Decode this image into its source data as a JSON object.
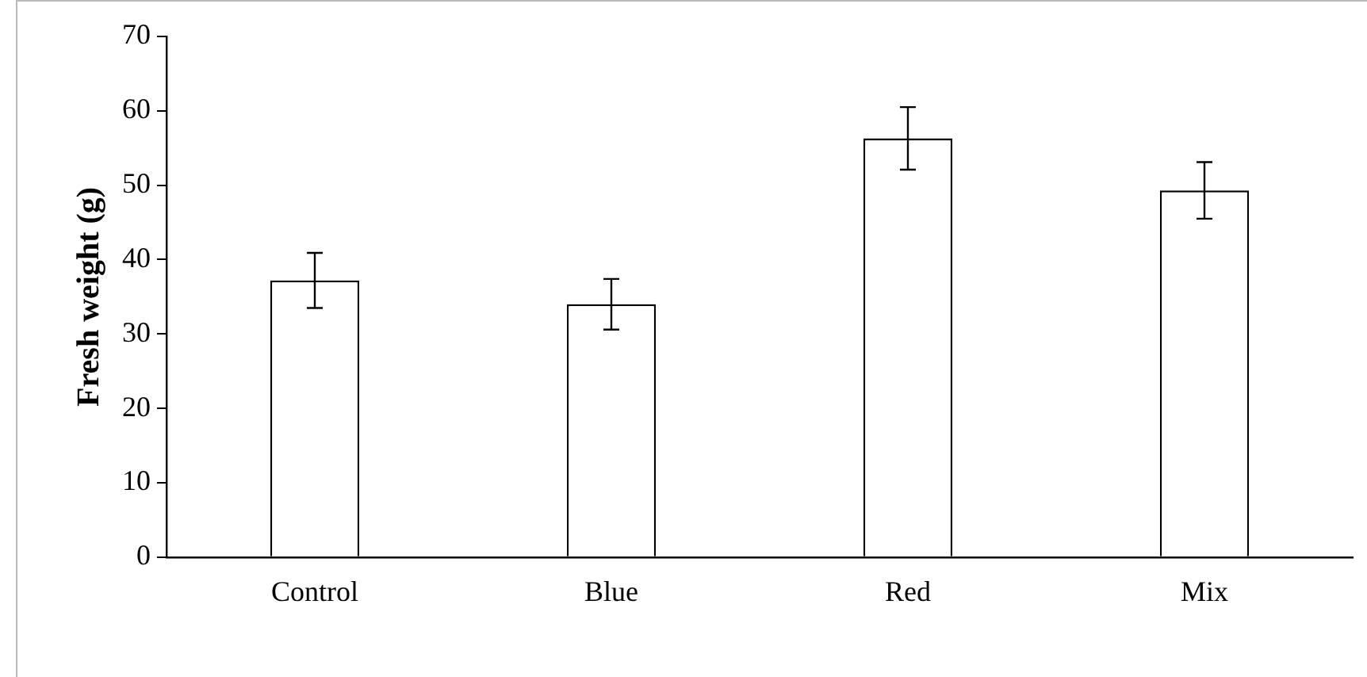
{
  "chart_data": {
    "type": "bar",
    "ylabel": "Fresh weight (g)",
    "categories": [
      "Control",
      "Blue",
      "Red",
      "Mix"
    ],
    "values": [
      37.2,
      34.0,
      56.3,
      49.3
    ],
    "errors": [
      3.7,
      3.4,
      4.2,
      3.8
    ],
    "color": "#ffffff",
    "ylim": [
      0,
      70
    ],
    "yticks": [
      0,
      10,
      20,
      30,
      40,
      50,
      60,
      70
    ],
    "grid": false,
    "legend": false
  }
}
